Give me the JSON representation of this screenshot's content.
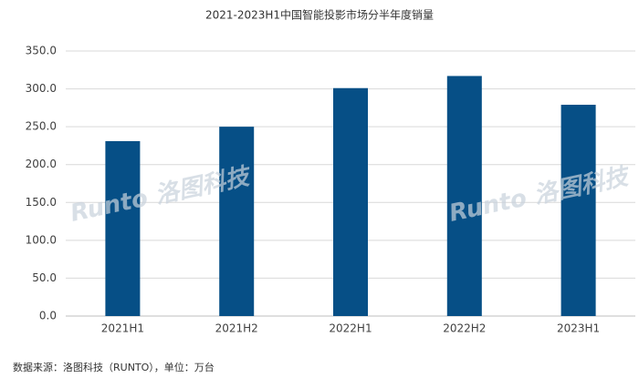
{
  "chart_data": {
    "type": "bar",
    "title": "2021-2023H1中国智能投影市场分半年度销量",
    "categories": [
      "2021H1",
      "2021H2",
      "2022H1",
      "2022H2",
      "2023H1"
    ],
    "values": [
      231,
      250,
      301,
      317,
      279
    ],
    "color": "#064f86",
    "ylim": [
      0,
      350
    ],
    "yticks": [
      {
        "value": 0,
        "label": "0.0"
      },
      {
        "value": 50,
        "label": "50.0"
      },
      {
        "value": 100,
        "label": "100.0"
      },
      {
        "value": 150,
        "label": "150.0"
      },
      {
        "value": 200,
        "label": "200.0"
      },
      {
        "value": 250,
        "label": "250.0"
      },
      {
        "value": 300,
        "label": "300.0"
      },
      {
        "value": 350,
        "label": "350.0"
      }
    ],
    "grid": true,
    "watermark": "Runto 洛图科技",
    "source": "数据来源：洛图科技（RUNTO），单位：万台"
  }
}
